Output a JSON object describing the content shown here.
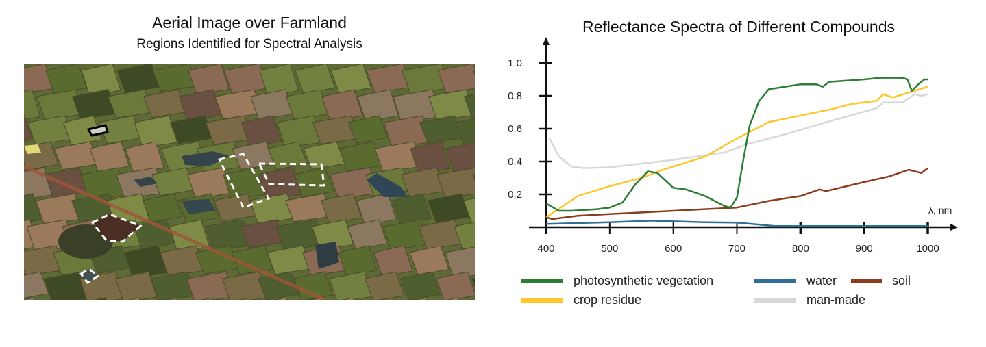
{
  "photo": {
    "title": "Aerial Image over Farmland",
    "subtitle": "Regions Identified for Spectral Analysis"
  },
  "chart_data": {
    "type": "line",
    "title": "Reflectance Spectra of Different Compounds",
    "xlabel": "λ, nm",
    "ylabel": "",
    "xlim": [
      400,
      1000
    ],
    "ylim": [
      0,
      1.0
    ],
    "x_ticks": [
      "400",
      "500",
      "600",
      "700",
      "800",
      "900",
      "1000"
    ],
    "y_ticks": [
      "0.2",
      "0.4",
      "0.6",
      "0.8",
      "1.0"
    ],
    "grid": false,
    "legend_placement": "bottom",
    "series": [
      {
        "name": "photosynthetic vegetation",
        "color": "#2b7d34",
        "x": [
          400,
          420,
          440,
          480,
          500,
          520,
          540,
          560,
          575,
          600,
          620,
          650,
          680,
          690,
          700,
          710,
          720,
          735,
          750,
          800,
          825,
          835,
          845,
          900,
          925,
          960,
          968,
          975,
          985,
          995,
          1000
        ],
        "y": [
          0.145,
          0.1,
          0.1,
          0.11,
          0.12,
          0.15,
          0.26,
          0.34,
          0.33,
          0.24,
          0.23,
          0.19,
          0.13,
          0.12,
          0.18,
          0.41,
          0.62,
          0.77,
          0.84,
          0.87,
          0.87,
          0.855,
          0.885,
          0.9,
          0.91,
          0.91,
          0.9,
          0.83,
          0.87,
          0.9,
          0.9
        ]
      },
      {
        "name": "water",
        "color": "#2e6f95",
        "x": [
          400,
          500,
          565,
          650,
          700,
          760,
          800,
          1000
        ],
        "y": [
          0.02,
          0.03,
          0.04,
          0.03,
          0.028,
          0.007,
          0.007,
          0.007
        ]
      },
      {
        "name": "soil",
        "color": "#8b3c1c",
        "x": [
          400,
          410,
          450,
          500,
          600,
          700,
          750,
          800,
          830,
          840,
          900,
          940,
          970,
          990,
          1000
        ],
        "y": [
          0.06,
          0.05,
          0.07,
          0.08,
          0.1,
          0.12,
          0.16,
          0.19,
          0.23,
          0.22,
          0.275,
          0.31,
          0.35,
          0.33,
          0.36
        ]
      },
      {
        "name": "crop residue",
        "color": "#ffc62a",
        "x": [
          400,
          450,
          500,
          550,
          580,
          600,
          650,
          700,
          750,
          800,
          850,
          880,
          920,
          930,
          945,
          970,
          1000
        ],
        "y": [
          0.06,
          0.19,
          0.25,
          0.3,
          0.345,
          0.37,
          0.43,
          0.54,
          0.64,
          0.68,
          0.72,
          0.75,
          0.77,
          0.81,
          0.79,
          0.82,
          0.855
        ]
      },
      {
        "name": "man-made",
        "color": "#d8d8d8",
        "x": [
          405,
          420,
          440,
          460,
          500,
          600,
          680,
          720,
          780,
          850,
          920,
          930,
          960,
          980,
          990,
          1000
        ],
        "y": [
          0.545,
          0.43,
          0.37,
          0.36,
          0.365,
          0.41,
          0.455,
          0.51,
          0.57,
          0.65,
          0.725,
          0.76,
          0.76,
          0.81,
          0.8,
          0.81
        ]
      }
    ]
  }
}
